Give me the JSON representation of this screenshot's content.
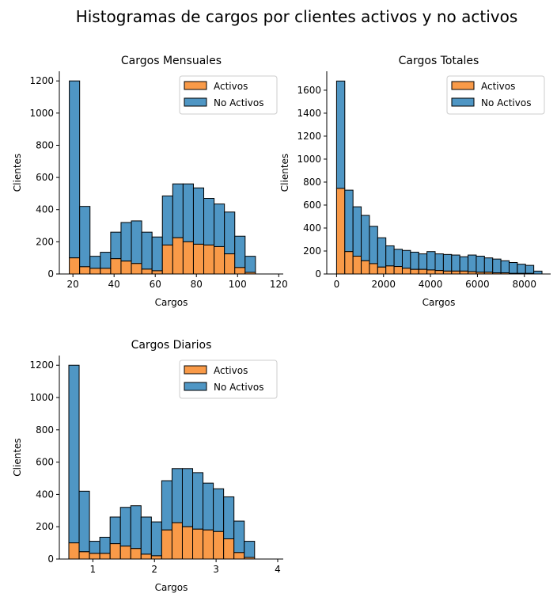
{
  "figure": {
    "title": "Histogramas de cargos por clientes activos y no activos"
  },
  "colors": {
    "activos": "#f99a48",
    "no_activos": "#4f96c4",
    "edge": "#000000"
  },
  "chart_data": [
    {
      "type": "bar",
      "stacked": true,
      "title": "Cargos Mensuales",
      "xlabel": "Cargos",
      "ylabel": "Clientes",
      "xlim": [
        13.4,
        122.2
      ],
      "ylim": [
        0,
        1260
      ],
      "xticks": [
        20,
        40,
        60,
        80,
        100,
        120
      ],
      "yticks": [
        0,
        200,
        400,
        600,
        800,
        1000,
        1200
      ],
      "bin_start": 18.25,
      "bin_width": 5.025,
      "legend": {
        "position": "top-right",
        "entries": [
          "Activos",
          "No Activos"
        ]
      },
      "series": [
        {
          "name": "Activos",
          "color_key": "activos",
          "values": [
            100,
            45,
            35,
            35,
            95,
            80,
            65,
            30,
            20,
            180,
            225,
            200,
            185,
            180,
            170,
            125,
            40,
            10
          ]
        },
        {
          "name": "No Activos",
          "color_key": "no_activos",
          "values": [
            1100,
            375,
            75,
            100,
            165,
            240,
            265,
            230,
            210,
            305,
            335,
            360,
            350,
            290,
            265,
            260,
            195,
            100
          ]
        }
      ]
    },
    {
      "type": "bar",
      "stacked": true,
      "title": "Cargos Totales",
      "xlabel": "Cargos",
      "ylabel": "Clientes",
      "xlim": [
        -418,
        9120
      ],
      "ylim": [
        0,
        1765
      ],
      "xticks": [
        0,
        2000,
        4000,
        6000,
        8000
      ],
      "yticks": [
        0,
        200,
        400,
        600,
        800,
        1000,
        1200,
        1400,
        1600
      ],
      "bin_start": 0,
      "bin_width": 350,
      "legend": {
        "position": "top-right",
        "entries": [
          "Activos",
          "No Activos"
        ]
      },
      "series": [
        {
          "name": "Activos",
          "color_key": "activos",
          "values": [
            745,
            195,
            155,
            115,
            90,
            60,
            70,
            65,
            50,
            40,
            40,
            35,
            30,
            25,
            25,
            25,
            20,
            15,
            15,
            10,
            10,
            5,
            5,
            5,
            0
          ]
        },
        {
          "name": "No Activos",
          "color_key": "no_activos",
          "values": [
            935,
            535,
            430,
            395,
            325,
            255,
            175,
            150,
            155,
            150,
            135,
            160,
            145,
            145,
            140,
            125,
            145,
            140,
            125,
            120,
            105,
            95,
            80,
            70,
            25
          ]
        }
      ]
    },
    {
      "type": "bar",
      "stacked": true,
      "title": "Cargos Diarios",
      "xlabel": "Cargos",
      "ylabel": "Clientes",
      "xlim": [
        0.456,
        4.09
      ],
      "ylim": [
        0,
        1260
      ],
      "xticks": [
        1,
        2,
        3,
        4
      ],
      "yticks": [
        0,
        200,
        400,
        600,
        800,
        1000,
        1200
      ],
      "bin_start": 0.61,
      "bin_width": 0.1675,
      "legend": {
        "position": "top-right",
        "entries": [
          "Activos",
          "No Activos"
        ]
      },
      "series": [
        {
          "name": "Activos",
          "color_key": "activos",
          "values": [
            100,
            45,
            35,
            35,
            95,
            80,
            65,
            30,
            20,
            180,
            225,
            200,
            185,
            180,
            170,
            125,
            40,
            10
          ]
        },
        {
          "name": "No Activos",
          "color_key": "no_activos",
          "values": [
            1100,
            375,
            75,
            100,
            165,
            240,
            265,
            230,
            210,
            305,
            335,
            360,
            350,
            290,
            265,
            260,
            195,
            100
          ]
        }
      ]
    }
  ]
}
